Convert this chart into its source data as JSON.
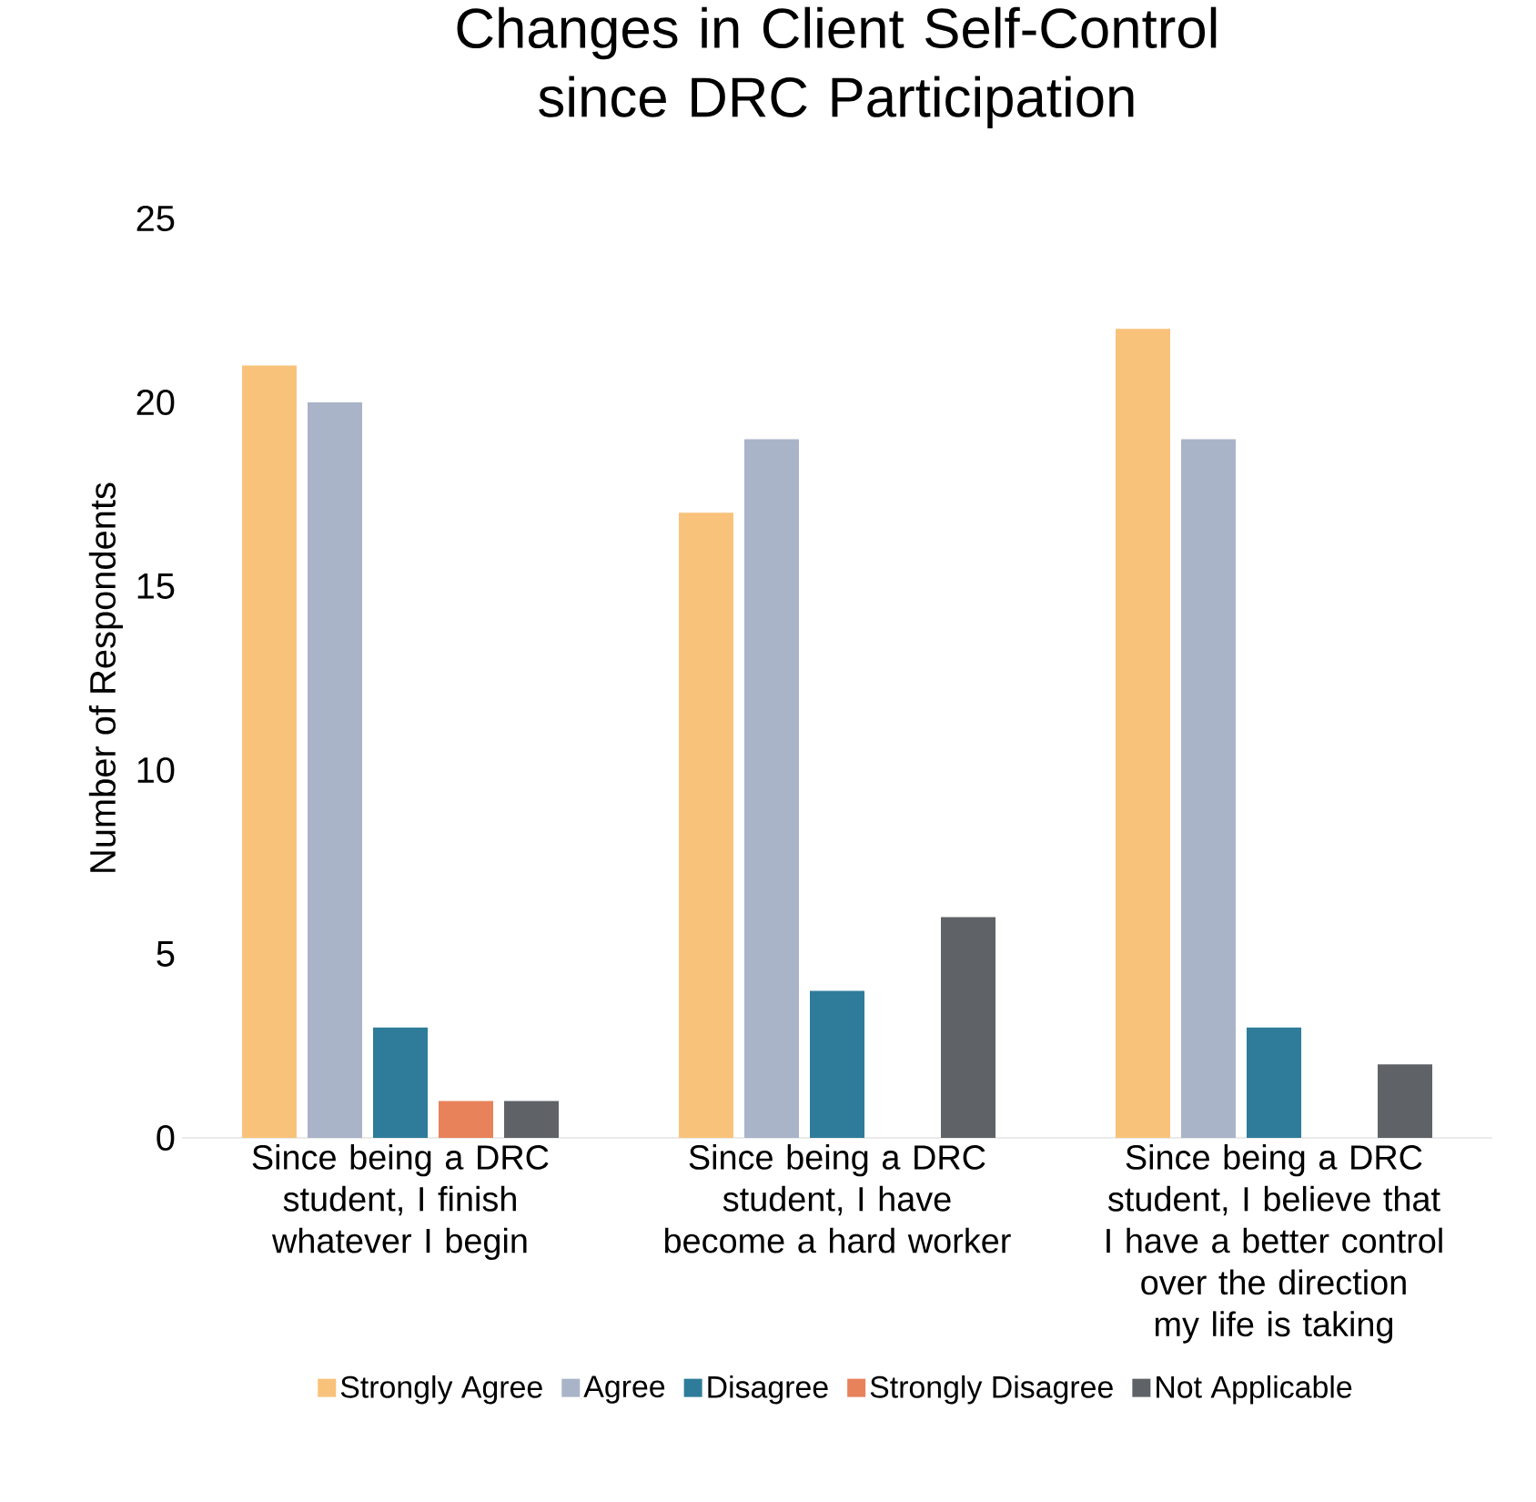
{
  "chart_data": {
    "type": "bar",
    "title": "Changes in Client Self-Control since DRC Participation",
    "ylabel": "Number of Respondents",
    "categories": [
      "Since being a DRC student, I finish whatever I begin",
      "Since being a DRC student, I have become a hard worker",
      "Since being a DRC student, I believe that I have a better control over the direction my life is taking"
    ],
    "series": [
      {
        "name": "Strongly Agree",
        "color": "#f9c27a",
        "values": [
          21,
          17,
          22
        ]
      },
      {
        "name": "Agree",
        "color": "#aab4c8",
        "values": [
          20,
          19,
          19
        ]
      },
      {
        "name": "Disagree",
        "color": "#2e7c9a",
        "values": [
          3,
          4,
          3
        ]
      },
      {
        "name": "Strongly Disagree",
        "color": "#e8825a",
        "values": [
          1,
          0,
          0
        ]
      },
      {
        "name": "Not Applicable",
        "color": "#5f6266",
        "values": [
          1,
          6,
          2
        ]
      }
    ],
    "ylim": [
      0,
      25
    ],
    "yticks": [
      0,
      5,
      10,
      15,
      20,
      25
    ],
    "grid": false,
    "legend": "bottom"
  }
}
